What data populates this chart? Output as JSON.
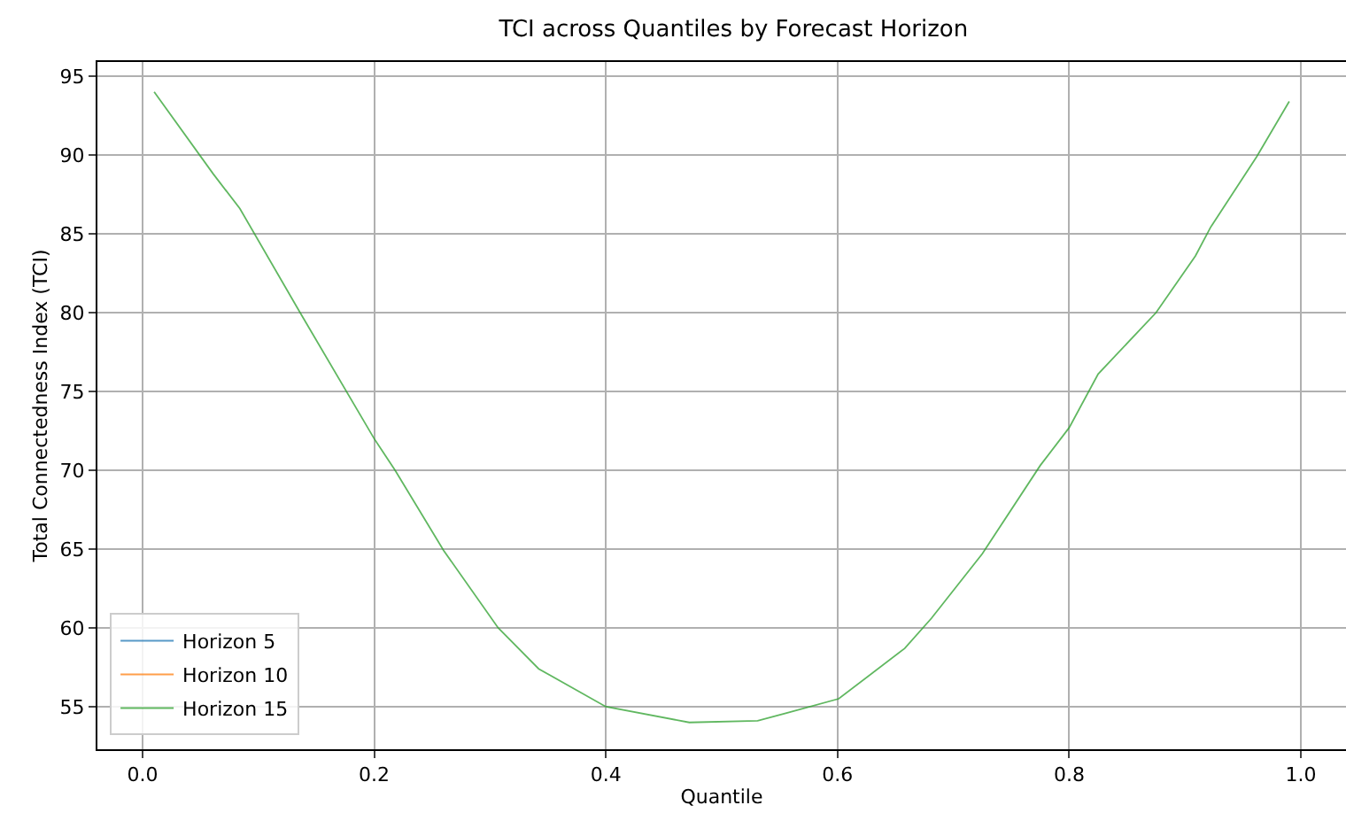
{
  "chart_data": {
    "type": "line",
    "title": "TCI across Quantiles by Forecast Horizon",
    "xlabel": "Quantile",
    "ylabel": "Total Connectedness Index (TCI)",
    "x": [
      0.01,
      0.061,
      0.084,
      0.136,
      0.2,
      0.218,
      0.26,
      0.307,
      0.342,
      0.4,
      0.472,
      0.531,
      0.556,
      0.601,
      0.658,
      0.681,
      0.725,
      0.775,
      0.8,
      0.825,
      0.875,
      0.909,
      0.922,
      0.962,
      0.99
    ],
    "series": [
      {
        "name": "Horizon 5",
        "color": "#1f77b4",
        "values": [
          null,
          null,
          null,
          null,
          null,
          null,
          null,
          null,
          null,
          null,
          null,
          null,
          null,
          null,
          null,
          null,
          null,
          null,
          null,
          null,
          null,
          null,
          null,
          null,
          null
        ]
      },
      {
        "name": "Horizon 10",
        "color": "#ff7f0e",
        "values": [
          null,
          null,
          null,
          null,
          null,
          null,
          null,
          null,
          null,
          null,
          null,
          null,
          null,
          null,
          null,
          null,
          null,
          null,
          null,
          null,
          null,
          null,
          null,
          null,
          null
        ]
      },
      {
        "name": "Horizon 15",
        "color": "#2ca02c",
        "values": [
          94.0,
          88.8,
          86.6,
          80.0,
          72.0,
          70.0,
          64.9,
          60.0,
          57.4,
          55.0,
          54.0,
          54.1,
          54.6,
          55.5,
          58.7,
          60.6,
          64.7,
          70.3,
          72.7,
          76.1,
          80.0,
          83.6,
          85.4,
          89.9,
          93.4
        ]
      }
    ],
    "xlim": [
      -0.039,
      1.039
    ],
    "xticks": [
      {
        "value": 0,
        "label": "0.0"
      },
      {
        "value": 0.2,
        "label": "0.2"
      },
      {
        "value": 0.4,
        "label": "0.4"
      },
      {
        "value": 0.6,
        "label": "0.6"
      },
      {
        "value": 0.8,
        "label": "0.8"
      },
      {
        "value": 1,
        "label": "1.0"
      }
    ],
    "ylim": [
      52.3,
      95.9
    ],
    "yticks": [
      55,
      60,
      65,
      70,
      75,
      80,
      85,
      90,
      95
    ],
    "grid": true,
    "legend": "bottom left",
    "marker": "none",
    "line_style": "solid"
  }
}
